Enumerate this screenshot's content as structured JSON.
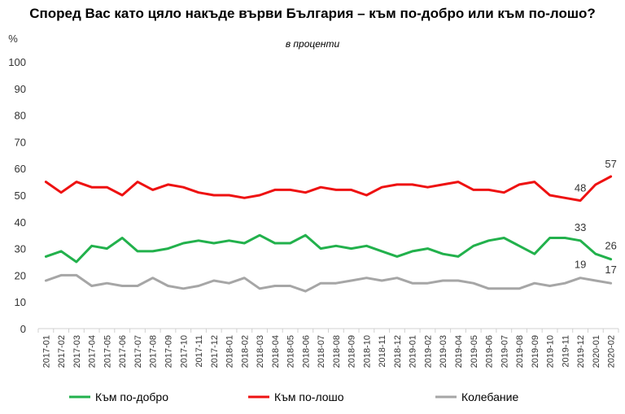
{
  "chart_data": {
    "type": "line",
    "title": "Според Вас като цяло накъде върви България – към по-добро или към по-лошо?",
    "subtitle": "в проценти",
    "ylabel": "%",
    "ylim": [
      0,
      100
    ],
    "yticks": [
      0,
      10,
      20,
      30,
      40,
      50,
      60,
      70,
      80,
      90,
      100
    ],
    "grid": false,
    "legend_position": "bottom",
    "categories": [
      "2017-01",
      "2017-02",
      "2017-03",
      "2017-04",
      "2017-05",
      "2017-06",
      "2017-07",
      "2017-08",
      "2017-09",
      "2017-10",
      "2017-11",
      "2017-12",
      "2018-01",
      "2018-02",
      "2018-03",
      "2018-04",
      "2018-05",
      "2018-06",
      "2018-07",
      "2018-08",
      "2018-09",
      "2018-10",
      "2018-11",
      "2018-12",
      "2019-01",
      "2019-02",
      "2019-03",
      "2019-04",
      "2019-05",
      "2019-06",
      "2019-07",
      "2019-08",
      "2019-09",
      "2019-10",
      "2019-11",
      "2019-12",
      "2020-01",
      "2020-02"
    ],
    "series": [
      {
        "name": "Към по-добро",
        "color": "#22b14c",
        "values": [
          27,
          29,
          25,
          31,
          30,
          34,
          29,
          29,
          30,
          32,
          33,
          32,
          33,
          32,
          35,
          32,
          32,
          35,
          30,
          31,
          30,
          31,
          29,
          27,
          29,
          30,
          28,
          27,
          31,
          33,
          34,
          31,
          28,
          34,
          34,
          33,
          28,
          26
        ]
      },
      {
        "name": "Към по-лошо",
        "color": "#ee1111",
        "values": [
          55,
          51,
          55,
          53,
          53,
          50,
          55,
          52,
          54,
          53,
          51,
          50,
          50,
          49,
          50,
          52,
          52,
          51,
          53,
          52,
          52,
          50,
          53,
          54,
          54,
          53,
          54,
          55,
          52,
          52,
          51,
          54,
          55,
          50,
          49,
          48,
          54,
          57
        ]
      },
      {
        "name": "Колебание",
        "color": "#a6a6a6",
        "values": [
          18,
          20,
          20,
          16,
          17,
          16,
          16,
          19,
          16,
          15,
          16,
          18,
          17,
          19,
          15,
          16,
          16,
          14,
          17,
          17,
          18,
          19,
          18,
          19,
          17,
          17,
          18,
          18,
          17,
          15,
          15,
          15,
          17,
          16,
          17,
          19,
          18,
          17
        ]
      }
    ],
    "data_labels": [
      {
        "series": 0,
        "index": 35,
        "text": "33"
      },
      {
        "series": 0,
        "index": 37,
        "text": "26"
      },
      {
        "series": 1,
        "index": 35,
        "text": "48"
      },
      {
        "series": 1,
        "index": 37,
        "text": "57"
      },
      {
        "series": 2,
        "index": 35,
        "text": "19"
      },
      {
        "series": 2,
        "index": 37,
        "text": "17"
      }
    ]
  }
}
